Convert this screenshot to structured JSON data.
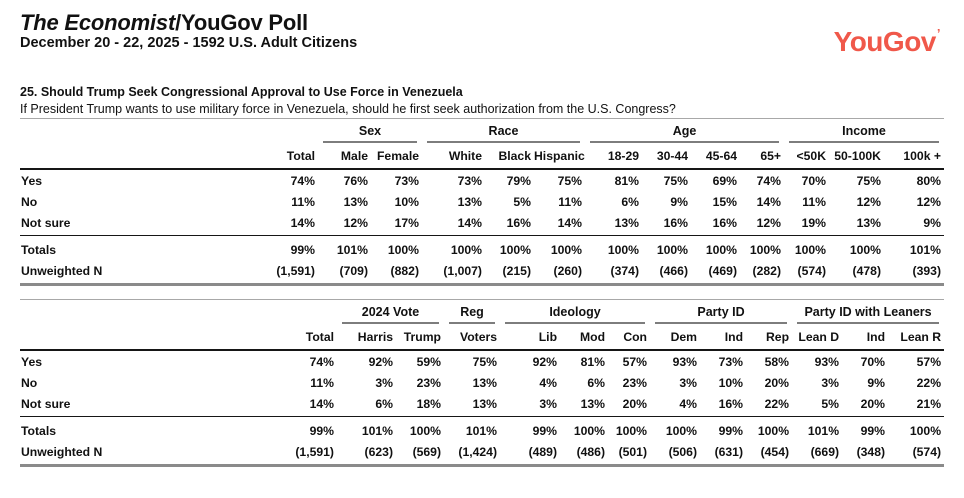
{
  "header": {
    "title_italic": "The Economist",
    "title_rest": "/YouGov Poll",
    "subtitle": "December 20 - 22, 2025 - 1592 U.S. Adult Citizens",
    "logo": "YouGov",
    "logo_mark": "’",
    "logo_color": "#f0584a"
  },
  "question": {
    "title": "25. Should Trump Seek Congressional Approval to Use Force in Venezuela",
    "text": "If President Trump wants to use military force in Venezuela, should he first seek authorization from the U.S. Congress?"
  },
  "tables": [
    {
      "groups": [
        {
          "label": "",
          "span": 1
        },
        {
          "label": "Sex",
          "span": 2
        },
        {
          "label": "Race",
          "span": 3
        },
        {
          "label": "Age",
          "span": 4
        },
        {
          "label": "Income",
          "span": 3
        }
      ],
      "columns": [
        "Total",
        "Male",
        "Female",
        "White",
        "Black",
        "Hispanic",
        "18-29",
        "30-44",
        "45-64",
        "65+",
        "<50K",
        "50-100K",
        "100k +"
      ],
      "rows": [
        {
          "label": "Yes",
          "values": [
            "74%",
            "76%",
            "73%",
            "73%",
            "79%",
            "75%",
            "81%",
            "75%",
            "69%",
            "74%",
            "70%",
            "75%",
            "80%"
          ]
        },
        {
          "label": "No",
          "values": [
            "11%",
            "13%",
            "10%",
            "13%",
            "5%",
            "11%",
            "6%",
            "9%",
            "15%",
            "14%",
            "11%",
            "12%",
            "12%"
          ]
        },
        {
          "label": "Not sure",
          "values": [
            "14%",
            "12%",
            "17%",
            "14%",
            "16%",
            "14%",
            "13%",
            "16%",
            "16%",
            "12%",
            "19%",
            "13%",
            "9%"
          ]
        }
      ],
      "footer_rows": [
        {
          "label": "Totals",
          "values": [
            "99%",
            "101%",
            "100%",
            "100%",
            "100%",
            "100%",
            "100%",
            "100%",
            "100%",
            "100%",
            "100%",
            "100%",
            "101%"
          ]
        },
        {
          "label": "Unweighted N",
          "values": [
            "(1,591)",
            "(709)",
            "(882)",
            "(1,007)",
            "(215)",
            "(260)",
            "(374)",
            "(466)",
            "(469)",
            "(282)",
            "(574)",
            "(478)",
            "(393)"
          ]
        }
      ]
    },
    {
      "groups": [
        {
          "label": "",
          "span": 1
        },
        {
          "label": "2024 Vote",
          "span": 2
        },
        {
          "label": "Reg",
          "span": 1
        },
        {
          "label": "Ideology",
          "span": 3
        },
        {
          "label": "Party ID",
          "span": 3
        },
        {
          "label": "Party ID with Leaners",
          "span": 3
        }
      ],
      "columns": [
        "Total",
        "Harris",
        "Trump",
        "Voters",
        "Lib",
        "Mod",
        "Con",
        "Dem",
        "Ind",
        "Rep",
        "Lean D",
        "Ind",
        "Lean R"
      ],
      "rows": [
        {
          "label": "Yes",
          "values": [
            "74%",
            "92%",
            "59%",
            "75%",
            "92%",
            "81%",
            "57%",
            "93%",
            "73%",
            "58%",
            "93%",
            "70%",
            "57%"
          ]
        },
        {
          "label": "No",
          "values": [
            "11%",
            "3%",
            "23%",
            "13%",
            "4%",
            "6%",
            "23%",
            "3%",
            "10%",
            "20%",
            "3%",
            "9%",
            "22%"
          ]
        },
        {
          "label": "Not sure",
          "values": [
            "14%",
            "6%",
            "18%",
            "13%",
            "3%",
            "13%",
            "20%",
            "4%",
            "16%",
            "22%",
            "5%",
            "20%",
            "21%"
          ]
        }
      ],
      "footer_rows": [
        {
          "label": "Totals",
          "values": [
            "99%",
            "101%",
            "100%",
            "101%",
            "99%",
            "100%",
            "100%",
            "100%",
            "99%",
            "100%",
            "101%",
            "99%",
            "100%"
          ]
        },
        {
          "label": "Unweighted N",
          "values": [
            "(1,591)",
            "(623)",
            "(569)",
            "(1,424)",
            "(489)",
            "(486)",
            "(501)",
            "(506)",
            "(631)",
            "(454)",
            "(669)",
            "(348)",
            "(574)"
          ]
        }
      ]
    }
  ]
}
